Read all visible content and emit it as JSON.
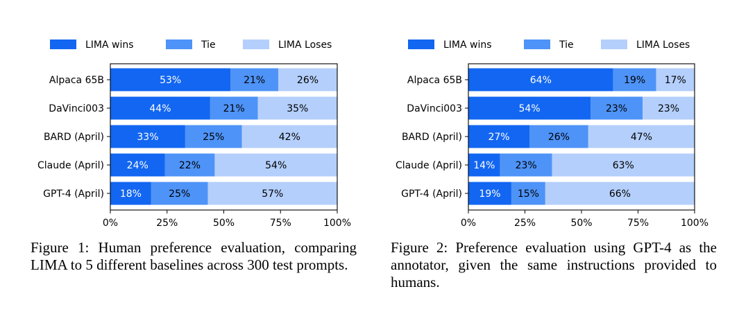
{
  "chart_data": [
    {
      "type": "bar",
      "orientation": "horizontal",
      "stacked": true,
      "categories": [
        "Alpaca 65B",
        "DaVinci003",
        "BARD (April)",
        "Claude (April)",
        "GPT-4 (April)"
      ],
      "series": [
        {
          "name": "LIMA wins",
          "values": [
            53,
            44,
            33,
            24,
            18
          ],
          "color": "#1266f1"
        },
        {
          "name": "Tie",
          "values": [
            21,
            21,
            25,
            22,
            25
          ],
          "color": "#4e93f7"
        },
        {
          "name": "LIMA Loses",
          "values": [
            26,
            35,
            42,
            54,
            57
          ],
          "color": "#b4cffb"
        }
      ],
      "data_labels": [
        [
          "53%",
          "44%",
          "33%",
          "24%",
          "18%"
        ],
        [
          "21%",
          "21%",
          "25%",
          "22%",
          "25%"
        ],
        [
          "26%",
          "35%",
          "42%",
          "54%",
          "57%"
        ]
      ],
      "xlim": [
        0,
        100
      ],
      "xticks": [
        0,
        25,
        50,
        75,
        100
      ],
      "xtick_labels": [
        "0%",
        "25%",
        "50%",
        "75%",
        "100%"
      ],
      "legend_position": "top",
      "grid": false
    },
    {
      "type": "bar",
      "orientation": "horizontal",
      "stacked": true,
      "categories": [
        "Alpaca 65B",
        "DaVinci003",
        "BARD (April)",
        "Claude (April)",
        "GPT-4 (April)"
      ],
      "series": [
        {
          "name": "LIMA wins",
          "values": [
            64,
            54,
            27,
            14,
            19
          ],
          "color": "#1266f1"
        },
        {
          "name": "Tie",
          "values": [
            19,
            23,
            26,
            23,
            15
          ],
          "color": "#4e93f7"
        },
        {
          "name": "LIMA Loses",
          "values": [
            17,
            23,
            47,
            63,
            66
          ],
          "color": "#b4cffb"
        }
      ],
      "data_labels": [
        [
          "64%",
          "54%",
          "27%",
          "14%",
          "19%"
        ],
        [
          "19%",
          "23%",
          "26%",
          "23%",
          "15%"
        ],
        [
          "17%",
          "23%",
          "47%",
          "63%",
          "66%"
        ]
      ],
      "xlim": [
        0,
        100
      ],
      "xticks": [
        0,
        25,
        50,
        75,
        100
      ],
      "xtick_labels": [
        "0%",
        "25%",
        "50%",
        "75%",
        "100%"
      ],
      "legend_position": "top",
      "grid": false
    }
  ],
  "captions": [
    "Figure 1: Human preference evaluation, comparing LIMA to 5 different baselines across 300 test prompts.",
    "Figure 2: Preference evaluation using GPT-4 as the annotator, given the same instructions provided to humans."
  ]
}
